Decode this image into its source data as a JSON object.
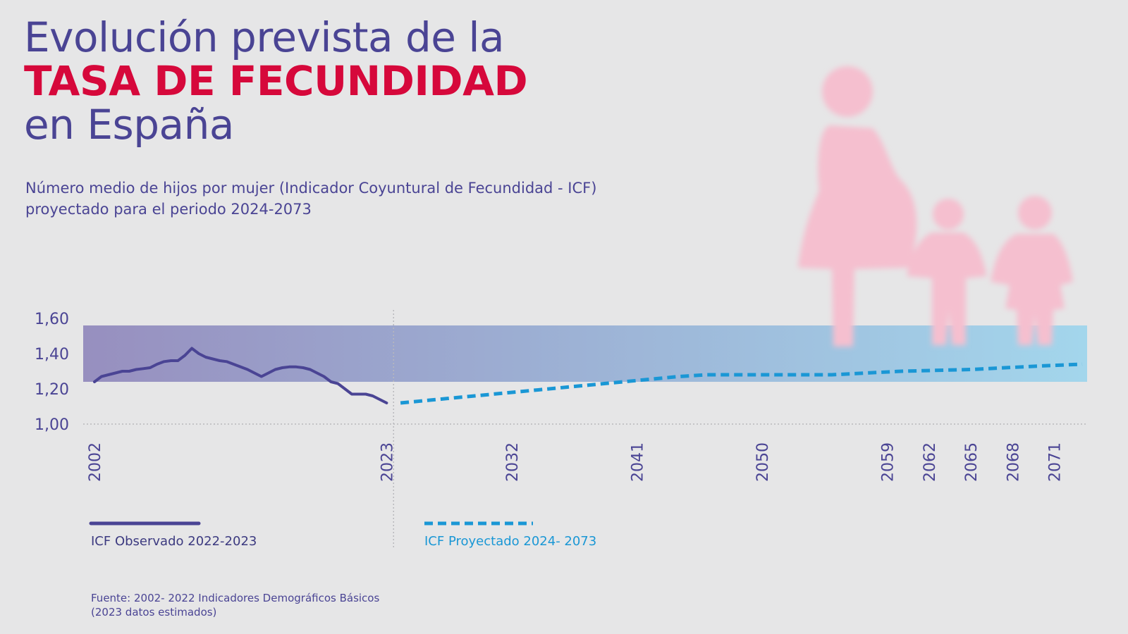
{
  "header": {
    "title_line1": "Evolución prevista de la",
    "title_line2": "TASA DE FECUNDIDAD",
    "title_line3": "en España",
    "subtitle_line1": "Número medio de hijos por mujer (Indicador Coyuntural de Fecundidad - ICF)",
    "subtitle_line2": "proyectado para el periodo 2024-2073"
  },
  "legend": {
    "observed": "ICF Observado 2022-2023",
    "projected": "ICF Proyectado 2024- 2073"
  },
  "source": {
    "line1": "Fuente: 2002- 2022 Indicadores Demográficos Básicos",
    "line2": "(2023 datos estimados)"
  },
  "colors": {
    "title": "#4a4494",
    "accent": "#d6083b",
    "observed": "#4a4494",
    "projected": "#1a97d5",
    "band_left": "#978fbf",
    "band_right": "#a3d6ec",
    "silhouette": "#f5bfcf"
  },
  "decoration": {
    "icon": "family-silhouette-icon"
  },
  "chart_data": {
    "type": "line",
    "title": "",
    "xlabel": "",
    "ylabel": "",
    "xlim": [
      2002,
      2073
    ],
    "ylim": [
      1.0,
      1.6
    ],
    "y_ticks": [
      "1,00",
      "1,20",
      "1,40",
      "1,60"
    ],
    "y_tick_values": [
      1.0,
      1.2,
      1.4,
      1.6
    ],
    "x_ticks": [
      "2002",
      "2023",
      "2032",
      "2041",
      "2050",
      "2059",
      "2062",
      "2065",
      "2068",
      "2071"
    ],
    "x_tick_values": [
      2002,
      2023,
      2032,
      2041,
      2050,
      2059,
      2062,
      2065,
      2068,
      2071
    ],
    "band": [
      1.24,
      1.56
    ],
    "grid": false,
    "legend": "bottom",
    "series": [
      {
        "name": "ICF Observado 2022-2023",
        "style": "solid",
        "points": [
          [
            2002,
            1.24
          ],
          [
            2002.5,
            1.27
          ],
          [
            2003,
            1.28
          ],
          [
            2003.5,
            1.29
          ],
          [
            2004,
            1.3
          ],
          [
            2004.5,
            1.3
          ],
          [
            2005,
            1.31
          ],
          [
            2005.5,
            1.315
          ],
          [
            2006,
            1.32
          ],
          [
            2006.5,
            1.34
          ],
          [
            2007,
            1.355
          ],
          [
            2007.5,
            1.36
          ],
          [
            2008,
            1.36
          ],
          [
            2008.5,
            1.39
          ],
          [
            2009,
            1.43
          ],
          [
            2009.5,
            1.4
          ],
          [
            2010,
            1.38
          ],
          [
            2010.5,
            1.37
          ],
          [
            2011,
            1.36
          ],
          [
            2011.5,
            1.355
          ],
          [
            2012,
            1.34
          ],
          [
            2012.5,
            1.325
          ],
          [
            2013,
            1.31
          ],
          [
            2013.5,
            1.29
          ],
          [
            2014,
            1.27
          ],
          [
            2014.5,
            1.29
          ],
          [
            2015,
            1.31
          ],
          [
            2015.5,
            1.32
          ],
          [
            2016,
            1.325
          ],
          [
            2016.5,
            1.325
          ],
          [
            2017,
            1.32
          ],
          [
            2017.5,
            1.31
          ],
          [
            2018,
            1.29
          ],
          [
            2018.5,
            1.27
          ],
          [
            2019,
            1.24
          ],
          [
            2019.5,
            1.23
          ],
          [
            2020,
            1.2
          ],
          [
            2020.5,
            1.17
          ],
          [
            2021,
            1.17
          ],
          [
            2021.5,
            1.17
          ],
          [
            2022,
            1.16
          ],
          [
            2022.5,
            1.14
          ],
          [
            2023,
            1.12
          ]
        ]
      },
      {
        "name": "ICF Proyectado 2024- 2073",
        "style": "dashed",
        "points": [
          [
            2024,
            1.12
          ],
          [
            2028,
            1.15
          ],
          [
            2032,
            1.18
          ],
          [
            2036,
            1.21
          ],
          [
            2040,
            1.24
          ],
          [
            2044,
            1.27
          ],
          [
            2046,
            1.28
          ],
          [
            2050,
            1.28
          ],
          [
            2055,
            1.28
          ],
          [
            2060,
            1.3
          ],
          [
            2065,
            1.31
          ],
          [
            2070,
            1.33
          ],
          [
            2073,
            1.34
          ]
        ]
      }
    ]
  }
}
